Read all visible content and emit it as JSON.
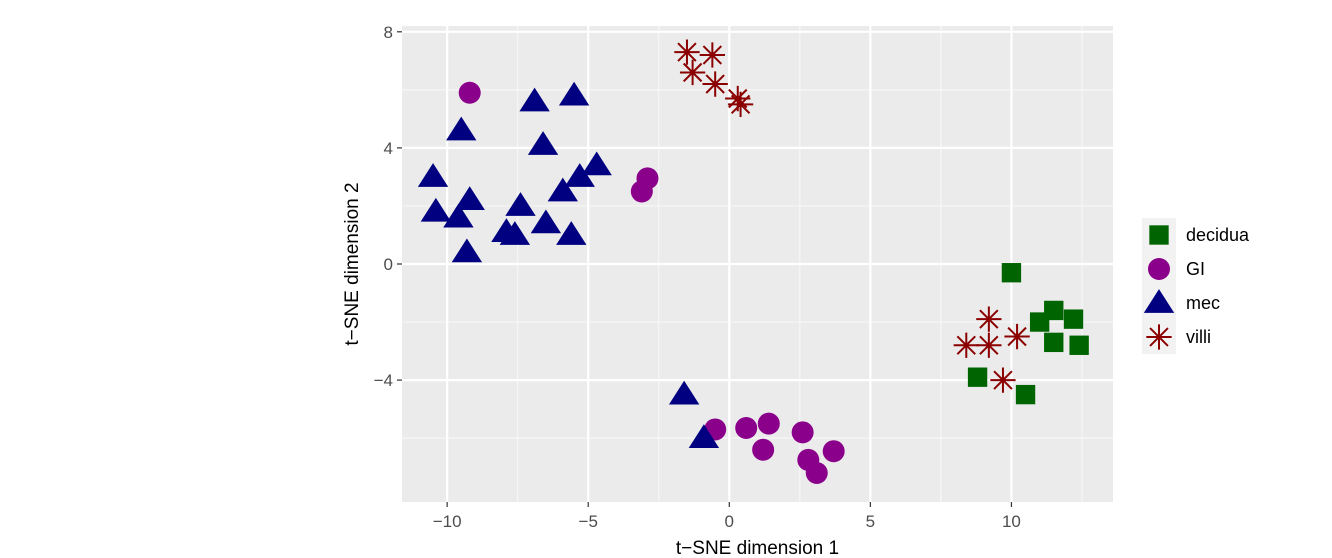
{
  "chart_data": {
    "type": "scatter",
    "title": "",
    "xlabel": "t−SNE dimension 1",
    "ylabel": "t−SNE dimension 2",
    "xlim": [
      -11.6,
      13.6
    ],
    "ylim": [
      -8.2,
      8.2
    ],
    "xticks": [
      -10,
      -5,
      0,
      5,
      10
    ],
    "xtick_labels": [
      "−10",
      "−5",
      "0",
      "5",
      "10"
    ],
    "yticks": [
      -4,
      0,
      4,
      8
    ],
    "ytick_labels": [
      "−4",
      "0",
      "4",
      "8"
    ],
    "grid": true,
    "legend_position": "right",
    "series": [
      {
        "name": "decidua",
        "shape": "square",
        "color": "#006400",
        "points": [
          [
            10.0,
            -0.3
          ],
          [
            11.0,
            -2.0
          ],
          [
            11.5,
            -1.6
          ],
          [
            12.2,
            -1.9
          ],
          [
            11.5,
            -2.7
          ],
          [
            12.4,
            -2.8
          ],
          [
            8.8,
            -3.9
          ],
          [
            10.5,
            -4.5
          ]
        ]
      },
      {
        "name": "GI",
        "shape": "circle",
        "color": "#8b008b",
        "points": [
          [
            -9.2,
            5.9
          ],
          [
            -2.9,
            2.95
          ],
          [
            -3.1,
            2.5
          ],
          [
            -0.5,
            -5.7
          ],
          [
            0.6,
            -5.65
          ],
          [
            1.4,
            -5.5
          ],
          [
            2.6,
            -5.8
          ],
          [
            1.2,
            -6.4
          ],
          [
            3.7,
            -6.45
          ],
          [
            2.8,
            -6.75
          ],
          [
            3.1,
            -7.2
          ]
        ]
      },
      {
        "name": "mec",
        "shape": "triangle",
        "color": "#000080",
        "points": [
          [
            -6.9,
            5.6
          ],
          [
            -5.5,
            5.8
          ],
          [
            -9.5,
            4.6
          ],
          [
            -6.6,
            4.1
          ],
          [
            -10.5,
            3.0
          ],
          [
            -4.7,
            3.4
          ],
          [
            -5.3,
            3.0
          ],
          [
            -5.9,
            2.5
          ],
          [
            -9.2,
            2.2
          ],
          [
            -7.4,
            2.0
          ],
          [
            -10.4,
            1.8
          ],
          [
            -9.6,
            1.6
          ],
          [
            -6.5,
            1.4
          ],
          [
            -7.9,
            1.1
          ],
          [
            -7.6,
            1.0
          ],
          [
            -5.6,
            1.0
          ],
          [
            -9.3,
            0.4
          ],
          [
            -1.6,
            -4.5
          ],
          [
            -0.9,
            -6.0
          ]
        ]
      },
      {
        "name": "villi",
        "shape": "asterisk",
        "color": "#8b0000",
        "points": [
          [
            -1.5,
            7.3
          ],
          [
            -0.6,
            7.2
          ],
          [
            -1.3,
            6.6
          ],
          [
            -0.5,
            6.2
          ],
          [
            0.3,
            5.7
          ],
          [
            0.4,
            5.5
          ],
          [
            9.2,
            -1.9
          ],
          [
            10.2,
            -2.5
          ],
          [
            8.4,
            -2.8
          ],
          [
            9.2,
            -2.8
          ],
          [
            9.7,
            -4.0
          ]
        ]
      }
    ]
  }
}
